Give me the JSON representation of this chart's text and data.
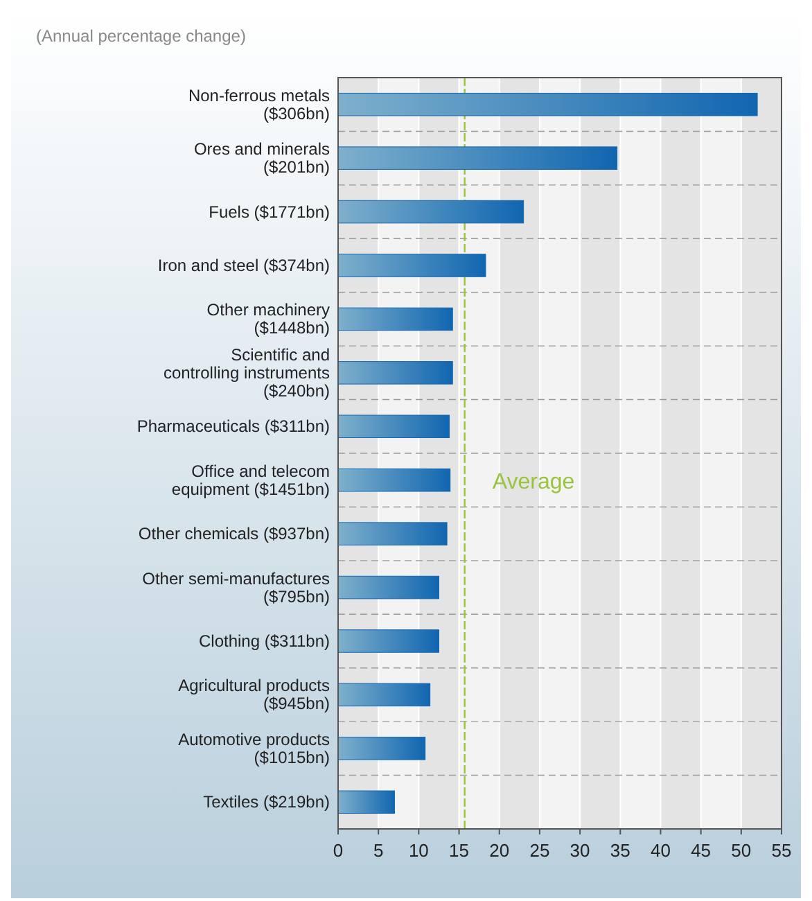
{
  "chart_data": {
    "type": "bar",
    "orientation": "horizontal",
    "subtitle": "(Annual percentage change)",
    "categories": [
      "Non-ferrous metals ($306bn)",
      "Ores and minerals ($201bn)",
      "Fuels ($1771bn)",
      "Iron and steel ($374bn)",
      "Other machinery ($1448bn)",
      "Scientific and controlling instruments ($240bn)",
      "Pharmaceuticals ($311bn)",
      "Office and telecom equipment ($1451bn)",
      "Other chemicals ($937bn)",
      "Other semi-manufactures ($795bn)",
      "Clothing ($311bn)",
      "Agricultural products ($945bn)",
      "Automotive products ($1015bn)",
      "Textiles ($219bn)"
    ],
    "values": [
      52,
      34.6,
      23,
      18.3,
      14.2,
      14.2,
      13.8,
      13.9,
      13.5,
      12.5,
      12.5,
      11.4,
      10.8,
      7
    ],
    "color": "#1166b0",
    "xlim": [
      0,
      55
    ],
    "xticks": [
      0,
      5,
      10,
      15,
      20,
      25,
      30,
      35,
      40,
      45,
      50,
      55
    ],
    "grid": "x",
    "ref_lines": [
      {
        "axis": "x",
        "value": 15.7,
        "label": "Average",
        "color": "#9ac43c",
        "line_style": "dashed"
      }
    ]
  }
}
